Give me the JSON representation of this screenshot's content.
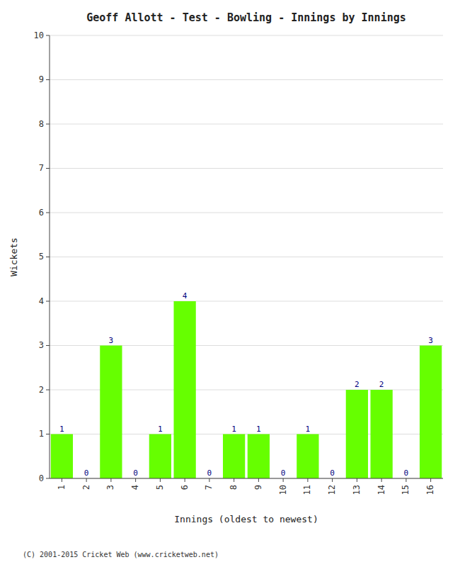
{
  "chart_data": {
    "type": "bar",
    "title": "Geoff Allott - Test - Bowling - Innings by Innings",
    "x_label": "Innings (oldest to newest)",
    "y_label": "Wickets",
    "x": [
      1,
      2,
      3,
      4,
      5,
      6,
      7,
      8,
      9,
      10,
      11,
      12,
      13,
      14,
      15,
      16
    ],
    "values": [
      1,
      0,
      3,
      0,
      1,
      4,
      0,
      1,
      1,
      0,
      1,
      0,
      2,
      2,
      0,
      3
    ],
    "color": "#66ff00",
    "xlim": [
      0.5,
      16.5
    ],
    "xticks": [
      1,
      2,
      3,
      4,
      5,
      6,
      7,
      8,
      9,
      10,
      11,
      12,
      13,
      14,
      15,
      16
    ],
    "ylim": [
      0,
      10
    ],
    "yticks": [
      0,
      1,
      2,
      3,
      4,
      5,
      6,
      7,
      8,
      9,
      10
    ],
    "grid": true,
    "data_labels": true,
    "annotations": [
      "(C) 2001-2015 Cricket Web (www.cricketweb.net)"
    ]
  }
}
